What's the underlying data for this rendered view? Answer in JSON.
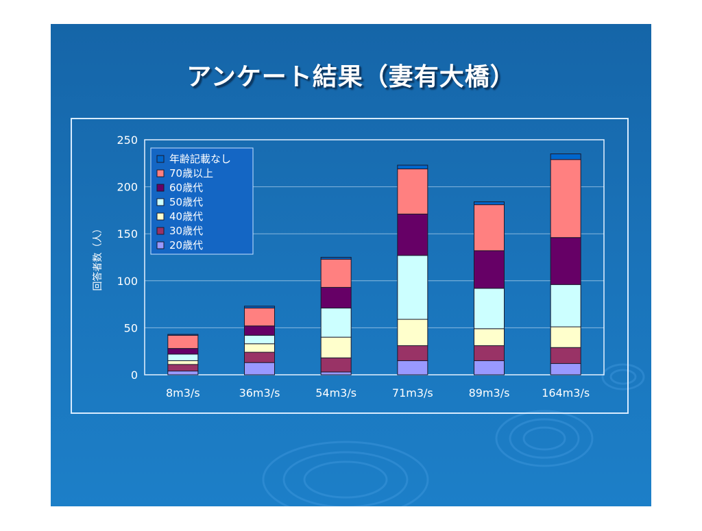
{
  "slide": {
    "title": "アンケート結果（妻有大橋）"
  },
  "chart_data": {
    "type": "bar",
    "stacked": true,
    "title": "",
    "xlabel": "",
    "ylabel": "回答者数（人）",
    "ylim": [
      0,
      250
    ],
    "yticks": [
      0,
      50,
      100,
      150,
      200,
      250
    ],
    "grid": true,
    "legend_position": "top-left",
    "categories": [
      "8m3/s",
      "36m3/s",
      "54m3/s",
      "71m3/s",
      "89m3/s",
      "164m3/s"
    ],
    "series": [
      {
        "name": "20歳代",
        "color": "#9999ff",
        "values": [
          4,
          13,
          3,
          15,
          15,
          12
        ]
      },
      {
        "name": "30歳代",
        "color": "#993366",
        "values": [
          7,
          11,
          15,
          16,
          16,
          17
        ]
      },
      {
        "name": "40歳代",
        "color": "#ffffcc",
        "values": [
          4,
          9,
          22,
          28,
          18,
          22
        ]
      },
      {
        "name": "50歳代",
        "color": "#ccffff",
        "values": [
          7,
          9,
          31,
          68,
          43,
          45
        ]
      },
      {
        "name": "60歳代",
        "color": "#660066",
        "values": [
          6,
          10,
          22,
          44,
          40,
          50
        ]
      },
      {
        "name": "70歳以上",
        "color": "#ff8080",
        "values": [
          14,
          19,
          30,
          48,
          49,
          83
        ]
      },
      {
        "name": "年齢記載なし",
        "color": "#0066cc",
        "values": [
          1,
          2,
          2,
          4,
          3,
          6
        ]
      }
    ]
  }
}
